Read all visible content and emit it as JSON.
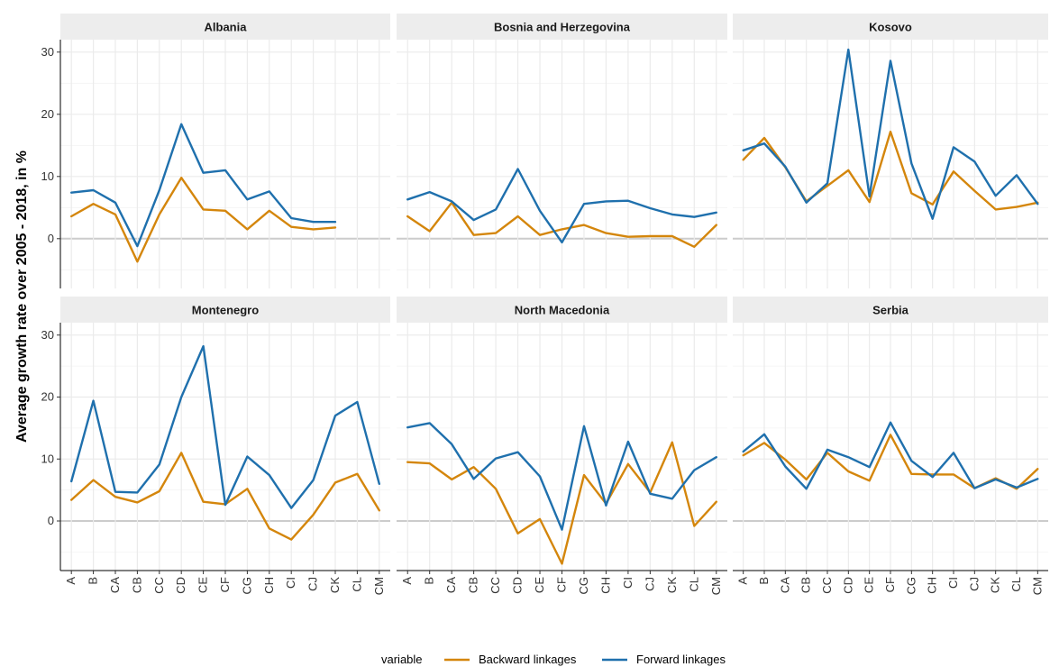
{
  "chart_data": {
    "type": "line",
    "ylabel": "Average growth rate over 2005 - 2018, in %",
    "xlabel": "",
    "ylim": [
      -8,
      32
    ],
    "yticks": [
      0,
      10,
      20,
      30
    ],
    "grid": true,
    "legend": {
      "title": "variable",
      "placement": "bottom",
      "entries": [
        "Backward linkages",
        "Forward linkages"
      ]
    },
    "colors": {
      "Backward linkages": "#D4860C",
      "Forward linkages": "#1F70AD",
      "strip_bg": "#EDEDED",
      "zero_line": "#CCCCCC",
      "grid": "#EBEBEB"
    },
    "categories": [
      "A",
      "B",
      "CA",
      "CB",
      "CC",
      "CD",
      "CE",
      "CF",
      "CG",
      "CH",
      "CI",
      "CJ",
      "CK",
      "CL",
      "CM"
    ],
    "panels": [
      {
        "title": "Albania",
        "series": [
          {
            "name": "Backward linkages",
            "values": [
              3.6,
              5.6,
              3.9,
              -3.7,
              3.9,
              9.8,
              4.7,
              4.5,
              1.5,
              4.5,
              1.9,
              1.5,
              1.8,
              null,
              null
            ]
          },
          {
            "name": "Forward linkages",
            "values": [
              7.4,
              7.8,
              5.8,
              -1.2,
              7.8,
              18.4,
              10.6,
              11.0,
              6.3,
              7.6,
              3.3,
              2.7,
              2.7,
              null,
              null
            ]
          }
        ]
      },
      {
        "title": "Bosnia and Herzegovina",
        "series": [
          {
            "name": "Backward linkages",
            "values": [
              3.6,
              1.2,
              5.8,
              0.6,
              0.9,
              3.6,
              0.6,
              1.5,
              2.2,
              0.9,
              0.3,
              0.4,
              0.4,
              -1.3,
              2.2
            ]
          },
          {
            "name": "Forward linkages",
            "values": [
              6.3,
              7.5,
              6.0,
              3.0,
              4.7,
              11.2,
              4.5,
              -0.6,
              5.6,
              6.0,
              6.1,
              4.9,
              3.9,
              3.5,
              4.2
            ]
          }
        ]
      },
      {
        "title": "Kosovo",
        "series": [
          {
            "name": "Backward linkages",
            "values": [
              12.7,
              16.2,
              11.5,
              6.0,
              8.5,
              11.0,
              5.9,
              17.2,
              7.3,
              5.5,
              10.8,
              7.7,
              4.7,
              5.1,
              5.8
            ]
          },
          {
            "name": "Forward linkages",
            "values": [
              14.2,
              15.3,
              11.6,
              5.8,
              8.9,
              30.4,
              6.8,
              28.6,
              12.1,
              3.2,
              14.7,
              12.4,
              6.9,
              10.2,
              5.6
            ]
          }
        ]
      },
      {
        "title": "Montenegro",
        "series": [
          {
            "name": "Backward linkages",
            "values": [
              3.4,
              6.6,
              3.9,
              3.0,
              4.8,
              11.0,
              3.1,
              2.7,
              5.2,
              -1.2,
              -3.0,
              1.0,
              6.2,
              7.6,
              1.7
            ]
          },
          {
            "name": "Forward linkages",
            "values": [
              6.4,
              19.4,
              4.7,
              4.6,
              9.1,
              20.0,
              28.2,
              2.6,
              10.4,
              7.4,
              2.1,
              6.6,
              17.0,
              19.2,
              6.0
            ]
          }
        ]
      },
      {
        "title": "North Macedonia",
        "series": [
          {
            "name": "Backward linkages",
            "values": [
              9.5,
              9.3,
              6.7,
              8.7,
              5.2,
              -2.0,
              0.3,
              -6.9,
              7.4,
              2.8,
              9.2,
              4.6,
              12.7,
              -0.8,
              3.1
            ]
          },
          {
            "name": "Forward linkages",
            "values": [
              15.1,
              15.8,
              12.4,
              6.8,
              10.1,
              11.1,
              7.2,
              -1.4,
              15.3,
              2.5,
              12.8,
              4.4,
              3.6,
              8.2,
              10.3
            ]
          }
        ]
      },
      {
        "title": "Serbia",
        "series": [
          {
            "name": "Backward linkages",
            "values": [
              10.6,
              12.6,
              9.9,
              6.7,
              11.0,
              8.0,
              6.5,
              13.9,
              7.6,
              7.5,
              7.5,
              5.3,
              6.9,
              5.2,
              8.4
            ]
          },
          {
            "name": "Forward linkages",
            "values": [
              11.2,
              14.0,
              8.8,
              5.2,
              11.5,
              10.3,
              8.7,
              15.9,
              9.7,
              7.1,
              11.0,
              5.3,
              6.7,
              5.4,
              6.8
            ]
          }
        ]
      }
    ]
  }
}
